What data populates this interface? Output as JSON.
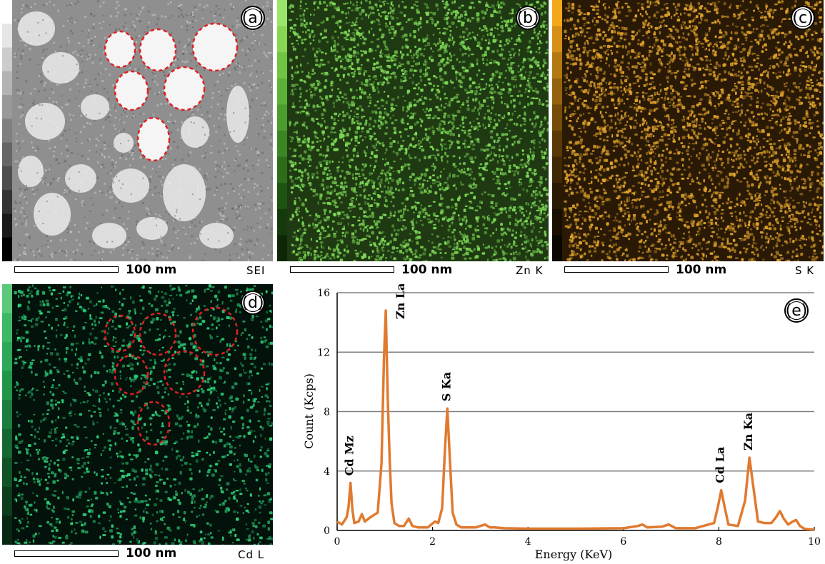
{
  "panels": [
    {
      "letter": "(a)",
      "scale": "100 nm",
      "label": "SEI",
      "kind": "sei"
    },
    {
      "letter": "(b)",
      "scale": "100 nm",
      "label": "Zn K",
      "kind": "zn",
      "color": "#7ed957"
    },
    {
      "letter": "(c)",
      "scale": "100 nm",
      "label": "S K",
      "kind": "s",
      "color": "#e0a22c"
    },
    {
      "letter": "(d)",
      "scale": "100 nm",
      "label": "Cd L",
      "kind": "cd",
      "color": "#2ecf7a"
    }
  ],
  "chart_data": {
    "type": "line",
    "letter": "(e)",
    "xlabel": "Energy (KeV)",
    "ylabel": "Count (Kcps)",
    "xlim": [
      0,
      10
    ],
    "ylim": [
      0,
      16
    ],
    "xticks": [
      0,
      2,
      4,
      6,
      8,
      10
    ],
    "yticks": [
      0,
      4,
      8,
      12,
      16
    ],
    "grid": "horizontal",
    "color": "#e07a2f",
    "peaks": [
      {
        "label": "Cd Mz",
        "x": 0.28,
        "y": 3.2
      },
      {
        "label": "Zn La",
        "x": 1.02,
        "y": 14.8
      },
      {
        "label": "S Ka",
        "x": 2.31,
        "y": 8.2
      },
      {
        "label": "Cd La",
        "x": 8.05,
        "y": 2.7
      },
      {
        "label": "Zn Ka",
        "x": 8.64,
        "y": 4.9
      }
    ],
    "series": [
      {
        "x": [
          0.0,
          0.1,
          0.2,
          0.24,
          0.28,
          0.32,
          0.36,
          0.45,
          0.52,
          0.58,
          0.7,
          0.85,
          0.93,
          0.98,
          1.02,
          1.06,
          1.1,
          1.14,
          1.2,
          1.3,
          1.4,
          1.5,
          1.58,
          1.7,
          1.9,
          2.05,
          2.12,
          2.2,
          2.26,
          2.31,
          2.36,
          2.42,
          2.5,
          2.6,
          2.7,
          2.9,
          3.1,
          3.2,
          3.3,
          3.5,
          4.0,
          5.0,
          6.0,
          6.3,
          6.4,
          6.5,
          6.8,
          6.95,
          7.1,
          7.5,
          7.9,
          7.98,
          8.05,
          8.12,
          8.2,
          8.4,
          8.55,
          8.64,
          8.72,
          8.82,
          8.95,
          9.1,
          9.2,
          9.28,
          9.36,
          9.45,
          9.55,
          9.62,
          9.7,
          9.8,
          10.0
        ],
        "y": [
          0.6,
          0.4,
          0.9,
          1.6,
          3.2,
          1.4,
          0.5,
          0.6,
          1.1,
          0.6,
          0.9,
          1.2,
          4.5,
          11.5,
          14.8,
          9.0,
          4.8,
          1.8,
          0.5,
          0.3,
          0.3,
          0.8,
          0.3,
          0.2,
          0.2,
          0.6,
          0.5,
          1.5,
          5.5,
          8.2,
          5.0,
          1.2,
          0.4,
          0.2,
          0.2,
          0.2,
          0.4,
          0.2,
          0.2,
          0.15,
          0.12,
          0.12,
          0.15,
          0.3,
          0.4,
          0.2,
          0.25,
          0.4,
          0.15,
          0.15,
          0.5,
          1.6,
          2.7,
          1.6,
          0.4,
          0.3,
          2.0,
          4.9,
          3.0,
          0.6,
          0.5,
          0.5,
          0.9,
          1.3,
          0.8,
          0.4,
          0.6,
          0.7,
          0.3,
          0.1,
          0.05
        ]
      }
    ]
  }
}
